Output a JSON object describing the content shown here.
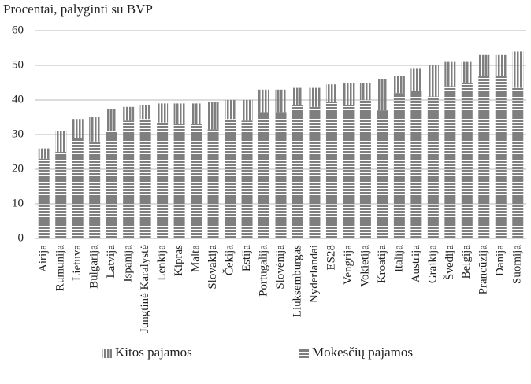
{
  "chart_data": {
    "type": "stacked_bar",
    "title": "Procentai, palyginti su BVP",
    "categories": [
      "Airija",
      "Rumunija",
      "Lietuva",
      "Bulgarija",
      "Latvija",
      "Ispanija",
      "Jungtinė Karalystė",
      "Lenkija",
      "Kipras",
      "Malta",
      "Slovakija",
      "Čekija",
      "Estija",
      "Portugalija",
      "Slovėnija",
      "Liuksemburgas",
      "Nyderlandai",
      "ES28",
      "Vengrija",
      "Vokietija",
      "Kroatija",
      "Italija",
      "Austrija",
      "Graikija",
      "Švedija",
      "Belgija",
      "Prancūzija",
      "Danija",
      "Suomija"
    ],
    "series": [
      {
        "name": "Mokesčių pajamos",
        "color": "#7f7f7f",
        "hatch": "horizontal",
        "values": [
          23,
          25,
          29,
          28,
          31,
          34,
          34.5,
          33.5,
          33,
          33,
          31.5,
          34.5,
          34,
          36.5,
          36.5,
          38.5,
          38,
          39.5,
          38.5,
          40,
          37,
          42,
          42.5,
          41,
          44,
          45,
          47,
          47,
          43.5
        ]
      },
      {
        "name": "Kitos pajamos",
        "color": "#7f7f7f",
        "hatch": "vertical",
        "values": [
          3,
          6,
          5.5,
          7,
          6.5,
          4,
          4,
          5.5,
          6,
          6,
          8,
          5.5,
          6,
          6.5,
          6.5,
          5,
          5.5,
          5,
          6.5,
          5,
          9,
          5,
          6.5,
          9,
          7,
          6,
          6,
          6,
          10.5
        ]
      }
    ],
    "ylim": [
      0,
      60
    ],
    "yticks": [
      0,
      10,
      20,
      30,
      40,
      50,
      60
    ],
    "grid": true
  }
}
